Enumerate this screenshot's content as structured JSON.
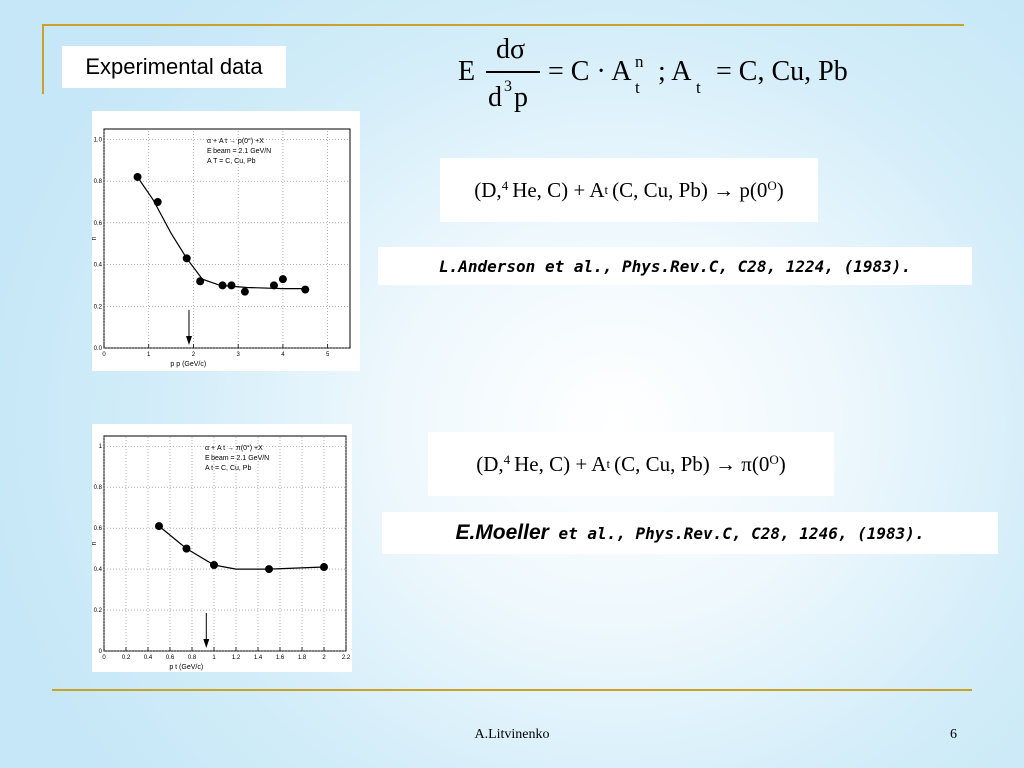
{
  "slide": {
    "title": "Experimental data",
    "formula": {
      "E": "E",
      "num": "dσ",
      "den_d": "d",
      "den_3": "3",
      "den_p": "p",
      "eq1": "= C · A",
      "sup_n": "n",
      "sub_t1": "t",
      "sep": "; A",
      "sub_t2": "t",
      "eq2": "= C, Cu, Pb"
    },
    "reaction1": {
      "prefix": "(D,",
      "sup4": "4",
      "mid": "He, C) + A",
      "subt": "t",
      "targets": "(C, Cu, Pb) → p(0",
      "supO": "O",
      "close": ")"
    },
    "reaction2": {
      "prefix": "(D,",
      "sup4": "4",
      "mid": "He, C) + A",
      "subt": "t",
      "targets": "(C, Cu, Pb) → π(0",
      "supO": "O",
      "close": ")"
    },
    "ref1": "L.Anderson et al., Phys.Rev.C, C28, 1224, (1983).",
    "ref2_author": "E.Moeller",
    "ref2_rest": " et al., Phys.Rev.C, C28, 1246, (1983).",
    "footer_author": "A.Litvinenko",
    "page_number": "6"
  },
  "colors": {
    "accent_line": "#c9a227",
    "point": "#000000",
    "grid": "#808080"
  },
  "chart_data": [
    {
      "type": "scatter",
      "title": "",
      "legend": [
        "α + A t → p(0°) +X",
        "E beam = 2.1 GeV/N",
        "A T = C, Cu, Pb"
      ],
      "ylabel": "n",
      "xlabel": "p p (GeV/c)",
      "xlim": [
        0,
        5.5
      ],
      "ylim": [
        0,
        1.05
      ],
      "xticks": [
        0,
        1,
        2,
        3,
        4,
        5
      ],
      "yticks": [
        0.0,
        0.2,
        0.4,
        0.6,
        0.8,
        1.0
      ],
      "ytick_labels": [
        "0.0",
        "0.2",
        "0.4",
        "0.6",
        "0.8",
        "1.0"
      ],
      "arrow_x": 1.9,
      "points": [
        [
          0.75,
          0.82
        ],
        [
          1.2,
          0.7
        ],
        [
          1.85,
          0.43
        ],
        [
          2.15,
          0.32
        ],
        [
          2.65,
          0.3
        ],
        [
          2.85,
          0.3
        ],
        [
          3.15,
          0.27
        ],
        [
          3.8,
          0.3
        ],
        [
          4.0,
          0.33
        ],
        [
          4.5,
          0.28
        ]
      ],
      "fit": [
        [
          0.75,
          0.82
        ],
        [
          1.1,
          0.71
        ],
        [
          1.5,
          0.55
        ],
        [
          1.85,
          0.43
        ],
        [
          2.2,
          0.33
        ],
        [
          2.6,
          0.3
        ],
        [
          3.2,
          0.29
        ],
        [
          4.0,
          0.285
        ],
        [
          4.5,
          0.285
        ]
      ]
    },
    {
      "type": "scatter",
      "title": "",
      "legend": [
        "α + A t → π(0°) +X",
        "E beam = 2.1 GeV/N",
        "A t = C, Cu, Pb"
      ],
      "ylabel": "n",
      "xlabel": "p t (GeV/c)",
      "xlim": [
        0,
        2.2
      ],
      "ylim": [
        0,
        1.05
      ],
      "xticks": [
        0,
        0.2,
        0.4,
        0.6,
        0.8,
        1,
        1.2,
        1.4,
        1.6,
        1.8,
        2,
        2.2
      ],
      "xtick_labels": [
        "0",
        "0.2",
        "0.4",
        "0.6",
        "0.8",
        "1",
        "1.2",
        "1.4",
        "1.6",
        "1.8",
        "2",
        "2.2"
      ],
      "yticks": [
        0,
        0.2,
        0.4,
        0.6,
        0.8,
        1
      ],
      "ytick_labels": [
        "0",
        "0.2",
        "0.4",
        "0.6",
        "0.8",
        "1"
      ],
      "arrow_x": 0.93,
      "points": [
        [
          0.5,
          0.61
        ],
        [
          0.75,
          0.5
        ],
        [
          1.0,
          0.42
        ],
        [
          1.5,
          0.4
        ],
        [
          2.0,
          0.41
        ]
      ],
      "fit": [
        [
          0.5,
          0.61
        ],
        [
          0.75,
          0.5
        ],
        [
          1.0,
          0.42
        ],
        [
          1.2,
          0.4
        ],
        [
          1.5,
          0.4
        ],
        [
          2.0,
          0.41
        ]
      ]
    }
  ]
}
